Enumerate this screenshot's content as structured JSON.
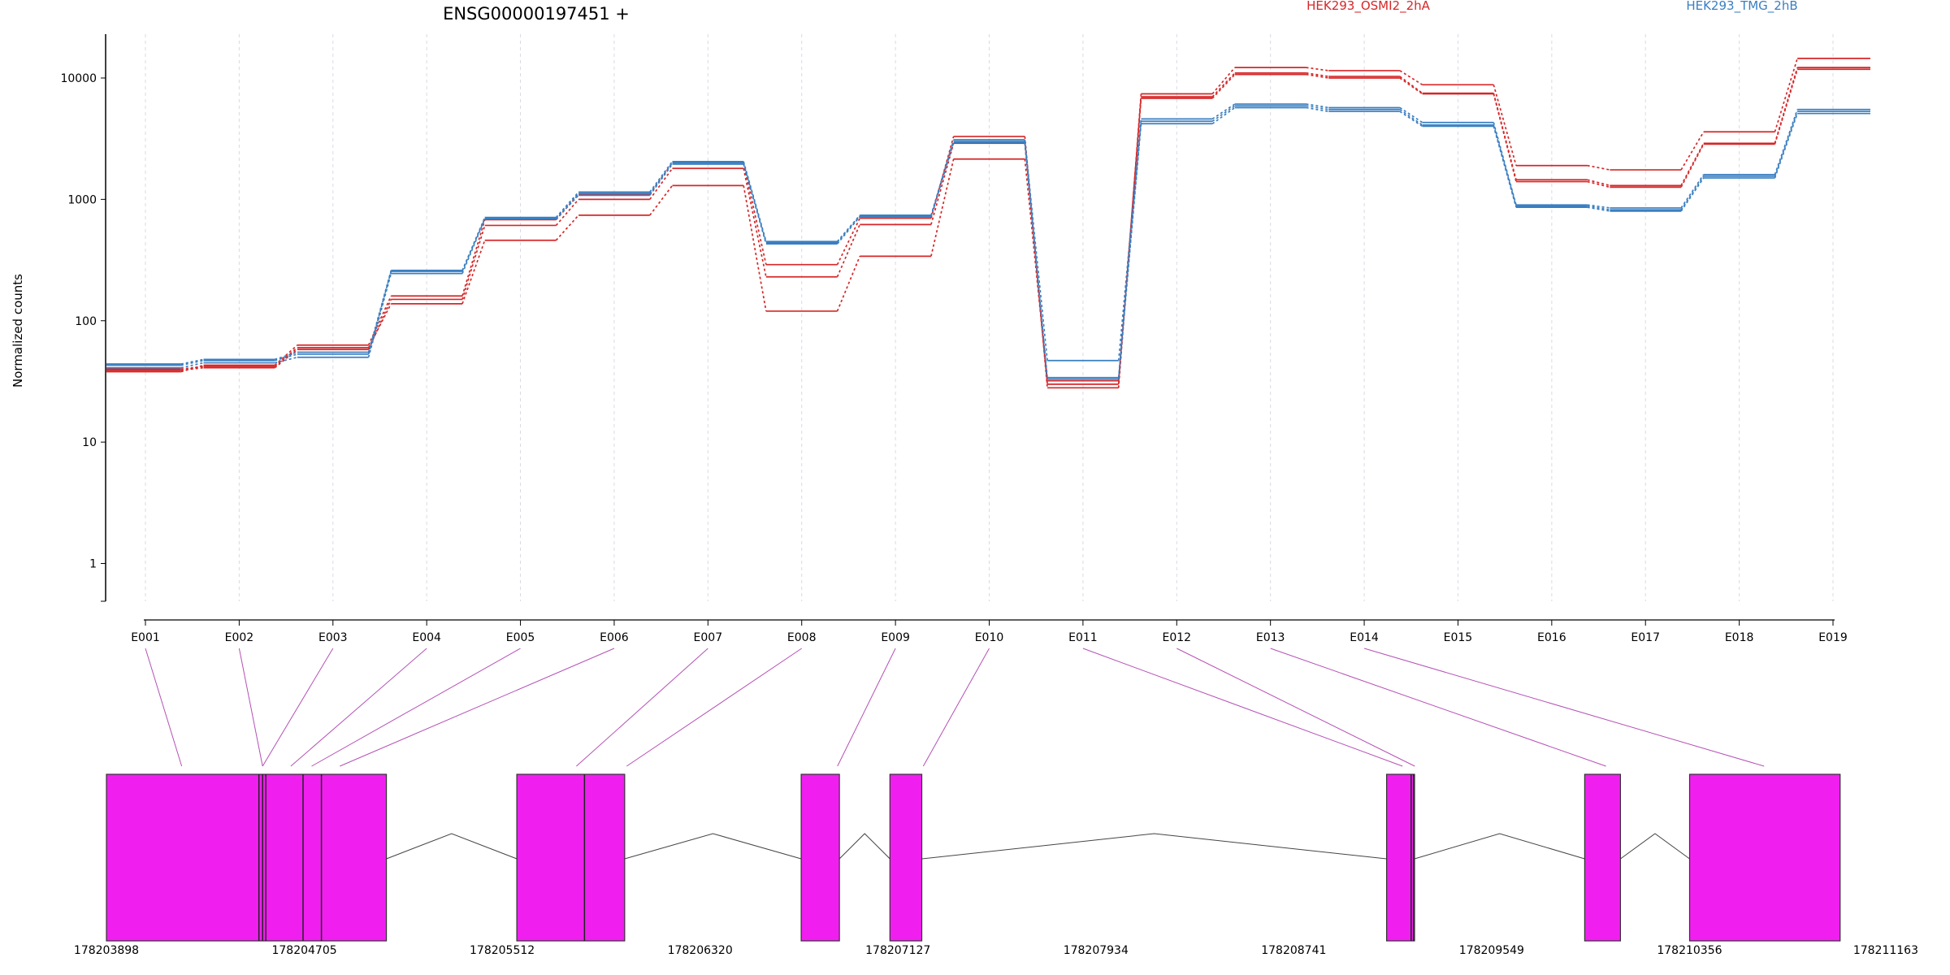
{
  "chart_data": {
    "type": "line",
    "title": "ENSG00000197451 +",
    "ylabel": "Normalized counts",
    "xlabel": "",
    "y_scale": "log",
    "y_ticks": [
      1,
      10,
      100,
      1000,
      10000
    ],
    "y_tick_labels": [
      "1",
      "10",
      "100",
      "1000",
      "10000"
    ],
    "categories": [
      "E001",
      "E002",
      "E003",
      "E004",
      "E005",
      "E006",
      "E007",
      "E008",
      "E009",
      "E010",
      "E011",
      "E012",
      "E013",
      "E014",
      "E015",
      "E016",
      "E017",
      "E018",
      "E019"
    ],
    "legend": [
      {
        "label": "HEK293_OSMI2_2hA",
        "color": "#d62728"
      },
      {
        "label": "HEK293_TMG_2hB",
        "color": "#3a7fc1"
      }
    ],
    "series": [
      {
        "group": "HEK293_OSMI2_2hA",
        "color": "#d62728",
        "values": [
          38,
          43,
          63,
          160,
          680,
          1100,
          2000,
          290,
          700,
          3300,
          28,
          7400,
          12200,
          11500,
          8800,
          1900,
          1750,
          3600,
          14500
        ]
      },
      {
        "group": "HEK293_OSMI2_2hA",
        "color": "#d62728",
        "values": [
          39,
          41,
          58,
          150,
          610,
          1000,
          1800,
          230,
          620,
          2900,
          30,
          7000,
          11000,
          10300,
          7500,
          1450,
          1300,
          2900,
          12200
        ]
      },
      {
        "group": "HEK293_OSMI2_2hA",
        "color": "#d62728",
        "values": [
          40,
          42,
          60,
          138,
          460,
          740,
          1300,
          120,
          340,
          2150,
          32,
          6800,
          10700,
          10000,
          7400,
          1400,
          1260,
          2850,
          11800
        ]
      },
      {
        "group": "HEK293_TMG_2hB",
        "color": "#3a7fc1",
        "values": [
          44,
          48,
          55,
          260,
          710,
          1150,
          2050,
          450,
          740,
          3100,
          47,
          4600,
          6100,
          5700,
          4300,
          900,
          850,
          1600,
          5500
        ]
      },
      {
        "group": "HEK293_TMG_2hB",
        "color": "#3a7fc1",
        "values": [
          43,
          47,
          53,
          255,
          700,
          1120,
          2000,
          440,
          730,
          3000,
          34,
          4400,
          5900,
          5500,
          4100,
          880,
          820,
          1550,
          5300
        ]
      },
      {
        "group": "HEK293_TMG_2hB",
        "color": "#3a7fc1",
        "values": [
          41,
          45,
          50,
          245,
          690,
          1080,
          1950,
          430,
          720,
          2950,
          33,
          4200,
          5700,
          5300,
          4000,
          860,
          800,
          1500,
          5100
        ]
      }
    ],
    "gene_model": {
      "coordinate_labels": [
        "178203898",
        "178204705",
        "178205512",
        "178206320",
        "178207127",
        "178207934",
        "178208741",
        "178209549",
        "178210356",
        "178211163"
      ],
      "range": [
        178203898,
        178211163
      ],
      "exon_color": "#f01fef",
      "connector_color": "#b550b5",
      "exon_blocks": [
        [
          178203898,
          178205040
        ],
        [
          178205572,
          178206012
        ],
        [
          178206732,
          178206888
        ],
        [
          178207094,
          178207224
        ],
        [
          178209120,
          178209234
        ],
        [
          178209928,
          178210074
        ],
        [
          178210356,
          178210970
        ]
      ],
      "exon_positions": [
        178204205,
        178204535,
        178204535,
        178204650,
        178204735,
        178204850,
        178205815,
        178206020,
        178206880,
        178207230,
        178209185,
        178209235,
        178210015,
        178210660
      ],
      "inner_boundaries": [
        178204520,
        178204535,
        178204548,
        178204700,
        178204775,
        178205848,
        178209220,
        178209230
      ],
      "introns": [
        [
          178205040,
          178205572
        ],
        [
          178206012,
          178206732
        ],
        [
          178206888,
          178207094
        ],
        [
          178207224,
          178209120
        ],
        [
          178209234,
          178209928
        ],
        [
          178210074,
          178210356
        ]
      ]
    }
  }
}
